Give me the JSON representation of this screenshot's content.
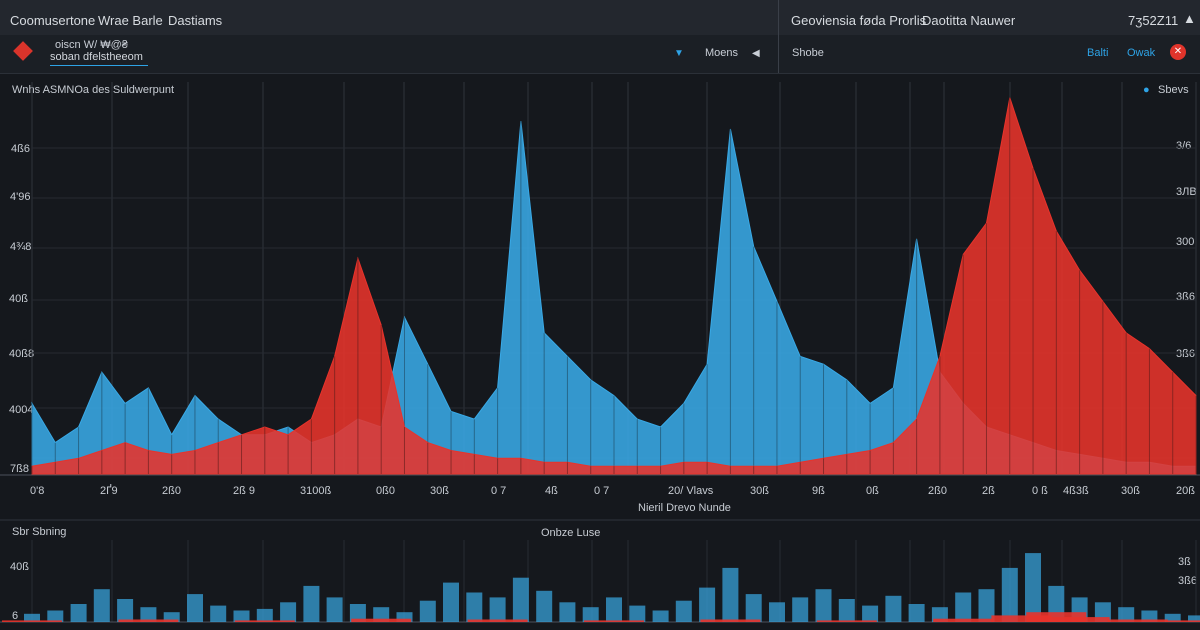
{
  "header": {
    "menu": [
      "Coomusertone",
      "Wrae Barle",
      "Dastiams"
    ],
    "right_menu": [
      "Geoviensia føda Prorlis",
      "Daotitta Nauwer"
    ],
    "timestamp": "7ʒ52Z11",
    "caret_icon": "caret-up-icon"
  },
  "toolbar": {
    "field_label": "oiscn W/ ₩@₴",
    "field_value": "soban dfelstheeom",
    "dropdown_label": "Moens",
    "right_label": "Shobe",
    "btn1": "Balti",
    "btn2": "Owak",
    "accent_color": "#2ea3e6",
    "alert_color": "#e1342b"
  },
  "main_chart": {
    "title": "Wnhs ASMNOa des Suldwerpunt",
    "legend_label": "Sbevs",
    "x_title": "Nieril Drevo Nunde"
  },
  "sub_chart": {
    "title": "Sbr Sbning",
    "center_label": "Onbze Luse"
  },
  "chart_data": [
    {
      "type": "area",
      "title": "Wnhs ASMNOa des Suldwerpunt",
      "xlabel": "Nieril Drevo Nunde",
      "y_ticks_left": [
        "4ß6",
        "4'96",
        "4¾8",
        "40ß",
        "40ß8",
        "4004",
        "7ß8"
      ],
      "y_ticks_right": [
        "3/6",
        "3ЛВ",
        "300",
        "3ß6",
        "3ß6"
      ],
      "x_ticks": [
        "0'8",
        "2Ґ9",
        "2ß0",
        "2ß 9",
        "3100ß",
        "0ß0",
        "30ß",
        "0 7",
        "4ß",
        "0 7",
        "20/ Vlavs",
        "30ß",
        "9ß",
        "0ß",
        "2ß0",
        "2ß",
        "0 ß",
        "4ß3ß",
        "30ß",
        "20ß"
      ],
      "x_range": [
        0,
        100
      ],
      "ylim": [
        0,
        100
      ],
      "grid": true,
      "series": [
        {
          "color": "#39a9e6",
          "x": [
            0,
            2,
            4,
            6,
            8,
            10,
            12,
            14,
            16,
            18,
            20,
            22,
            24,
            26,
            28,
            30,
            32,
            34,
            36,
            38,
            40,
            42,
            44,
            46,
            48,
            50,
            52,
            54,
            56,
            58,
            60,
            62,
            64,
            66,
            68,
            70,
            72,
            74,
            76,
            78,
            80,
            82,
            84,
            86,
            88,
            90,
            92,
            94,
            96,
            98,
            100
          ],
          "values": [
            18,
            8,
            12,
            26,
            18,
            22,
            10,
            20,
            14,
            10,
            10,
            12,
            8,
            10,
            14,
            12,
            40,
            28,
            16,
            14,
            22,
            90,
            36,
            30,
            24,
            20,
            14,
            12,
            18,
            28,
            88,
            58,
            44,
            30,
            28,
            24,
            18,
            22,
            60,
            26,
            18,
            12,
            10,
            8,
            6,
            5,
            4,
            3,
            3,
            2,
            2
          ]
        },
        {
          "color": "#e8332b",
          "x": [
            0,
            2,
            4,
            6,
            8,
            10,
            12,
            14,
            16,
            18,
            20,
            22,
            24,
            26,
            28,
            30,
            32,
            34,
            36,
            38,
            40,
            42,
            44,
            46,
            48,
            50,
            52,
            54,
            56,
            58,
            60,
            62,
            64,
            66,
            68,
            70,
            72,
            74,
            76,
            78,
            80,
            82,
            84,
            86,
            88,
            90,
            92,
            94,
            96,
            98,
            100
          ],
          "values": [
            2,
            3,
            4,
            6,
            8,
            6,
            5,
            6,
            8,
            10,
            12,
            10,
            14,
            30,
            55,
            38,
            12,
            8,
            6,
            5,
            4,
            4,
            3,
            3,
            2,
            2,
            2,
            2,
            3,
            3,
            2,
            2,
            2,
            3,
            4,
            5,
            6,
            8,
            14,
            30,
            56,
            64,
            96,
            78,
            62,
            52,
            44,
            36,
            32,
            26,
            20
          ]
        }
      ]
    },
    {
      "type": "bar",
      "title": "Sbr Sbning",
      "annotation": "Onbze Luse",
      "y_ticks_left": [
        "40ß",
        "6"
      ],
      "y_ticks_right": [
        "3ß",
        "3ß6"
      ],
      "ylim": [
        0,
        100
      ],
      "series": [
        {
          "color": "#39a9e6",
          "x": [
            0,
            2,
            4,
            6,
            8,
            10,
            12,
            14,
            16,
            18,
            20,
            22,
            24,
            26,
            28,
            30,
            32,
            34,
            36,
            38,
            40,
            42,
            44,
            46,
            48,
            50,
            52,
            54,
            56,
            58,
            60,
            62,
            64,
            66,
            68,
            70,
            72,
            74,
            76,
            78,
            80,
            82,
            84,
            86,
            88,
            90,
            92,
            94,
            96,
            98,
            100
          ],
          "values": [
            10,
            14,
            22,
            40,
            28,
            18,
            12,
            34,
            20,
            14,
            16,
            24,
            44,
            30,
            22,
            18,
            12,
            26,
            48,
            36,
            30,
            54,
            38,
            24,
            18,
            30,
            20,
            14,
            26,
            42,
            66,
            34,
            24,
            30,
            40,
            28,
            20,
            32,
            22,
            18,
            36,
            40,
            66,
            84,
            44,
            30,
            24,
            18,
            14,
            10,
            8
          ]
        },
        {
          "color": "#e8332b",
          "x": [
            0,
            10,
            20,
            30,
            40,
            50,
            60,
            70,
            80,
            85,
            88,
            90,
            95,
            100
          ],
          "values": [
            2,
            3,
            2,
            4,
            3,
            2,
            3,
            2,
            4,
            8,
            12,
            6,
            3,
            2
          ]
        }
      ]
    }
  ]
}
